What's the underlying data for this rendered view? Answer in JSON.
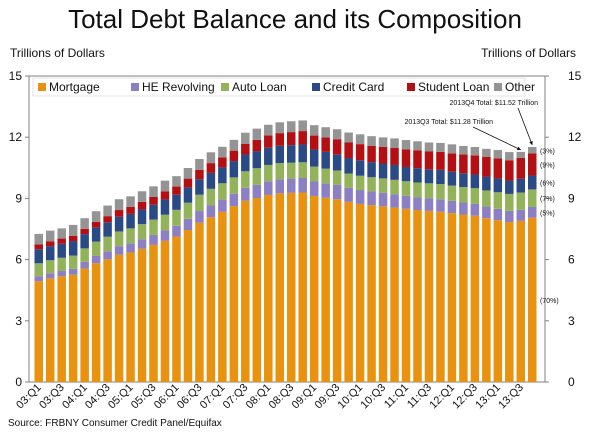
{
  "header": {
    "title": "Total Debt Balance and its Composition",
    "unit_left": "Trillions of Dollars",
    "unit_right": "Trillions of Dollars"
  },
  "footer": {
    "source": "Source: FRBNY Consumer Credit Panel/Equifax"
  },
  "colors": {
    "Mortgage": "#e8920f",
    "HE Revolving": "#8c7fc4",
    "Auto Loan": "#93b35a",
    "Credit Card": "#2a4a86",
    "Student Loan": "#b40f12",
    "Other": "#949494"
  },
  "chart_data": {
    "type": "bar",
    "stacked": true,
    "title": "Total Debt Balance and its Composition",
    "ylabel": "Trillions of Dollars",
    "ylim": [
      0,
      15
    ],
    "yticks": [
      0,
      3,
      6,
      9,
      12,
      15
    ],
    "categories": [
      "03:Q1",
      "03:Q2",
      "03:Q3",
      "03:Q4",
      "04:Q1",
      "04:Q2",
      "04:Q3",
      "04:Q4",
      "05:Q1",
      "05:Q2",
      "05:Q3",
      "05:Q4",
      "06:Q1",
      "06:Q2",
      "06:Q3",
      "06:Q4",
      "07:Q1",
      "07:Q2",
      "07:Q3",
      "07:Q4",
      "08:Q1",
      "08:Q2",
      "08:Q3",
      "08:Q4",
      "09:Q1",
      "09:Q2",
      "09:Q3",
      "09:Q4",
      "10:Q1",
      "10:Q2",
      "10:Q3",
      "10:Q4",
      "11:Q1",
      "11:Q2",
      "11:Q3",
      "11:Q4",
      "12:Q1",
      "12:Q2",
      "12:Q3",
      "12:Q4",
      "13:Q1",
      "13:Q2",
      "13:Q3",
      "13:Q4"
    ],
    "xtick_labels": [
      "03:Q1",
      "03:Q3",
      "04:Q1",
      "04:Q3",
      "05:Q1",
      "05:Q3",
      "06:Q1",
      "06:Q3",
      "07:Q1",
      "07:Q3",
      "08:Q1",
      "08:Q3",
      "09:Q1",
      "09:Q3",
      "10:Q1",
      "10:Q3",
      "11:Q1",
      "11:Q3",
      "12:Q1",
      "12:Q3",
      "13:Q1",
      "13:Q3"
    ],
    "series": [
      {
        "name": "Mortgage",
        "values": [
          4.94,
          5.08,
          5.18,
          5.26,
          5.56,
          5.82,
          6.02,
          6.24,
          6.35,
          6.53,
          6.72,
          6.92,
          7.13,
          7.45,
          7.81,
          8.08,
          8.34,
          8.62,
          8.89,
          9.02,
          9.17,
          9.25,
          9.27,
          9.29,
          9.12,
          9.03,
          8.96,
          8.83,
          8.73,
          8.67,
          8.61,
          8.55,
          8.49,
          8.43,
          8.39,
          8.35,
          8.28,
          8.21,
          8.15,
          8.03,
          7.93,
          7.84,
          7.9,
          8.05
        ]
      },
      {
        "name": "HE Revolving",
        "values": [
          0.24,
          0.25,
          0.26,
          0.29,
          0.33,
          0.36,
          0.39,
          0.42,
          0.45,
          0.47,
          0.49,
          0.51,
          0.53,
          0.55,
          0.57,
          0.59,
          0.6,
          0.61,
          0.63,
          0.65,
          0.67,
          0.69,
          0.7,
          0.71,
          0.71,
          0.71,
          0.7,
          0.69,
          0.68,
          0.67,
          0.66,
          0.65,
          0.64,
          0.63,
          0.62,
          0.61,
          0.6,
          0.59,
          0.58,
          0.57,
          0.56,
          0.55,
          0.54,
          0.53
        ]
      },
      {
        "name": "Auto Loan",
        "values": [
          0.64,
          0.64,
          0.65,
          0.65,
          0.66,
          0.7,
          0.71,
          0.72,
          0.73,
          0.74,
          0.75,
          0.77,
          0.78,
          0.79,
          0.8,
          0.8,
          0.8,
          0.8,
          0.81,
          0.81,
          0.8,
          0.79,
          0.78,
          0.77,
          0.73,
          0.72,
          0.71,
          0.7,
          0.7,
          0.7,
          0.71,
          0.71,
          0.71,
          0.72,
          0.73,
          0.74,
          0.75,
          0.76,
          0.77,
          0.79,
          0.81,
          0.83,
          0.85,
          0.86
        ]
      },
      {
        "name": "Credit Card",
        "values": [
          0.69,
          0.69,
          0.69,
          0.71,
          0.7,
          0.7,
          0.71,
          0.72,
          0.71,
          0.72,
          0.73,
          0.75,
          0.74,
          0.75,
          0.76,
          0.78,
          0.78,
          0.8,
          0.82,
          0.84,
          0.84,
          0.85,
          0.86,
          0.87,
          0.84,
          0.82,
          0.79,
          0.76,
          0.76,
          0.74,
          0.73,
          0.73,
          0.7,
          0.7,
          0.69,
          0.7,
          0.68,
          0.67,
          0.67,
          0.68,
          0.68,
          0.66,
          0.67,
          0.68
        ]
      },
      {
        "name": "Student Loan",
        "values": [
          0.24,
          0.24,
          0.25,
          0.26,
          0.26,
          0.27,
          0.3,
          0.33,
          0.35,
          0.37,
          0.38,
          0.39,
          0.4,
          0.43,
          0.46,
          0.48,
          0.49,
          0.51,
          0.53,
          0.55,
          0.61,
          0.62,
          0.64,
          0.66,
          0.68,
          0.71,
          0.74,
          0.76,
          0.79,
          0.8,
          0.81,
          0.83,
          0.86,
          0.87,
          0.87,
          0.88,
          0.9,
          0.92,
          0.94,
          0.96,
          0.98,
          0.99,
          1.03,
          1.08
        ]
      },
      {
        "name": "Other",
        "values": [
          0.51,
          0.52,
          0.5,
          0.53,
          0.52,
          0.52,
          0.52,
          0.53,
          0.51,
          0.52,
          0.52,
          0.53,
          0.51,
          0.52,
          0.53,
          0.53,
          0.52,
          0.53,
          0.54,
          0.55,
          0.52,
          0.53,
          0.53,
          0.52,
          0.51,
          0.5,
          0.49,
          0.49,
          0.48,
          0.47,
          0.47,
          0.47,
          0.46,
          0.45,
          0.44,
          0.44,
          0.44,
          0.42,
          0.41,
          0.4,
          0.41,
          0.4,
          0.29,
          0.32
        ]
      }
    ],
    "shares_labels": [
      "(3%)",
      "(9%)",
      "(6%)",
      "(7%)",
      "(5%)",
      "(70%)"
    ],
    "annotations": [
      {
        "text": "2013Q4 Total: $11.52 Trillion",
        "category": "13:Q4"
      },
      {
        "text": "2013Q3 Total: $11.28 Trillion",
        "category": "13:Q3"
      }
    ],
    "legend_position": "top",
    "grid": false
  }
}
